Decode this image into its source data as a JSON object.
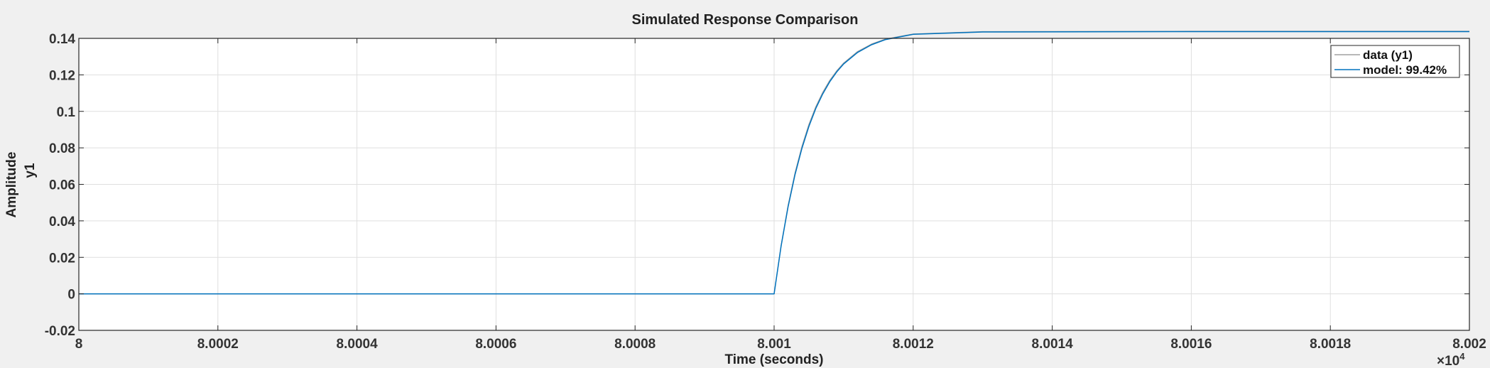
{
  "chart_data": {
    "type": "line",
    "title": "Simulated Response Comparison",
    "xlabel": "Time (seconds)",
    "ylabel": "Amplitude",
    "ylabel_sub": "y1",
    "x_multiplier": "×10",
    "x_multiplier_exp": "4",
    "xlim": [
      8,
      8.002
    ],
    "ylim": [
      -0.02,
      0.14
    ],
    "x_ticks": [
      8,
      8.0002,
      8.0004,
      8.0006,
      8.0008,
      8.001,
      8.0012,
      8.0014,
      8.0016,
      8.0018,
      8.002
    ],
    "x_tick_labels": [
      "8",
      "8.0002",
      "8.0004",
      "8.0006",
      "8.0008",
      "8.001",
      "8.0012",
      "8.0014",
      "8.0016",
      "8.0018",
      "8.002"
    ],
    "y_ticks": [
      -0.02,
      0,
      0.02,
      0.04,
      0.06,
      0.08,
      0.1,
      0.12,
      0.14
    ],
    "y_tick_labels": [
      "-0.02",
      "0",
      "0.02",
      "0.04",
      "0.06",
      "0.08",
      "0.1",
      "0.12",
      "0.14"
    ],
    "grid": true,
    "legend_position": "top-right",
    "series": [
      {
        "name": "data (y1)",
        "color": "#a0a0a0",
        "x": [
          8,
          8.001,
          8.00101,
          8.00102,
          8.00103,
          8.00104,
          8.00105,
          8.00106,
          8.00107,
          8.00108,
          8.0001,
          8.00109,
          8.0011,
          8.00112,
          8.00114,
          8.00116,
          8.0012,
          8.0013,
          8.0016,
          8.002
        ],
        "y": [
          0,
          0,
          0.0265,
          0.0484,
          0.0663,
          0.0809,
          0.0928,
          0.1026,
          0.1105,
          0.117,
          0,
          0.1222,
          0.1265,
          0.1328,
          0.1369,
          0.1396,
          0.1424,
          0.1437,
          0.1439,
          0.1439
        ]
      },
      {
        "name": "model: 99.42%",
        "color": "#0072bd",
        "x": [
          8,
          8.001,
          8.00101,
          8.00102,
          8.00103,
          8.00104,
          8.00105,
          8.00106,
          8.00107,
          8.00108,
          8.00109,
          8.0011,
          8.00112,
          8.00114,
          8.00116,
          8.0012,
          8.0013,
          8.0016,
          8.002
        ],
        "y": [
          0,
          0,
          0.0261,
          0.0476,
          0.0653,
          0.0798,
          0.0917,
          0.1016,
          0.1096,
          0.1162,
          0.1216,
          0.126,
          0.1323,
          0.1365,
          0.1393,
          0.1422,
          0.1435,
          0.1437,
          0.1437
        ]
      }
    ]
  }
}
